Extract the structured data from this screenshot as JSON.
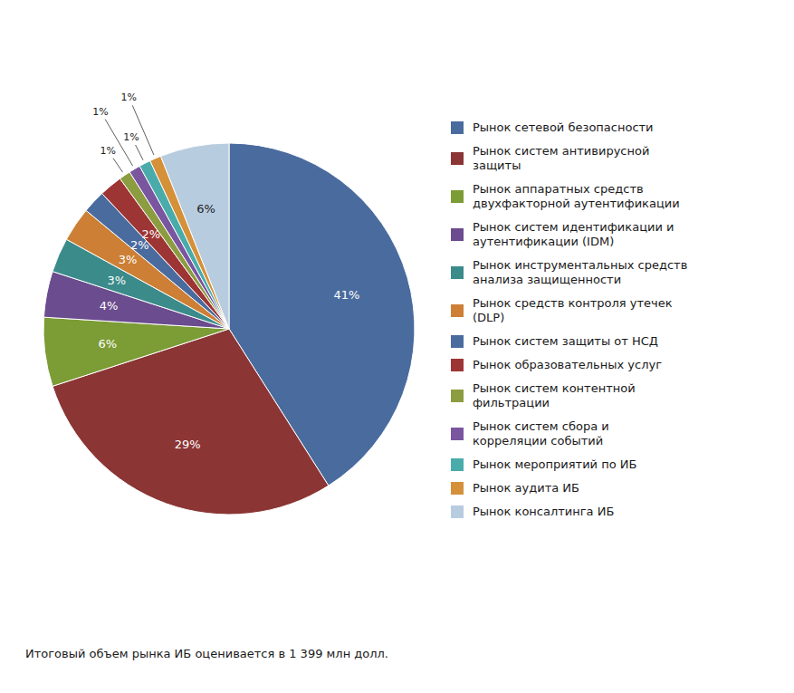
{
  "chart_data": {
    "type": "pie",
    "categories": [
      "Рынок сетевой безопасности",
      "Рынок систем антивирусной\nзащиты",
      "Рынок аппаратных средств\nдвухфакторной аутентификации",
      "Рынок систем идентификации и\nаутентификации (IDM)",
      "Рынок инструментальных средств\nанализа защищенности",
      "Рынок средств контроля утечек\n(DLP)",
      "Рынок систем защиты от НСД",
      "Рынок образовательных услуг",
      "Рынок систем контентной\nфильтрации",
      "Рынок систем сбора и\nкорреляции событий",
      "Рынок мероприятий по ИБ",
      "Рынок аудита ИБ",
      "Рынок консалтинга ИБ"
    ],
    "values": [
      41,
      29,
      6,
      4,
      3,
      3,
      2,
      2,
      1,
      1,
      1,
      1,
      6
    ],
    "value_labels": [
      "41%",
      "29%",
      "6%",
      "4%",
      "3%",
      "3%",
      "2%",
      "2%",
      "1%",
      "1%",
      "1%",
      "1%",
      "6%"
    ],
    "colors": [
      "#4a6b9e",
      "#8b3535",
      "#7c9c35",
      "#6b4c8e",
      "#3b8b8b",
      "#cc7f35",
      "#4a6b9e",
      "#9e3535",
      "#8c9c40",
      "#7a55a0",
      "#4aabab",
      "#d4913a",
      "#b8cce0"
    ],
    "data_labels": true,
    "legend": "right",
    "annotations": [
      "Итоговый объем рынка ИБ оценивается в 1 399 млн долл."
    ]
  }
}
